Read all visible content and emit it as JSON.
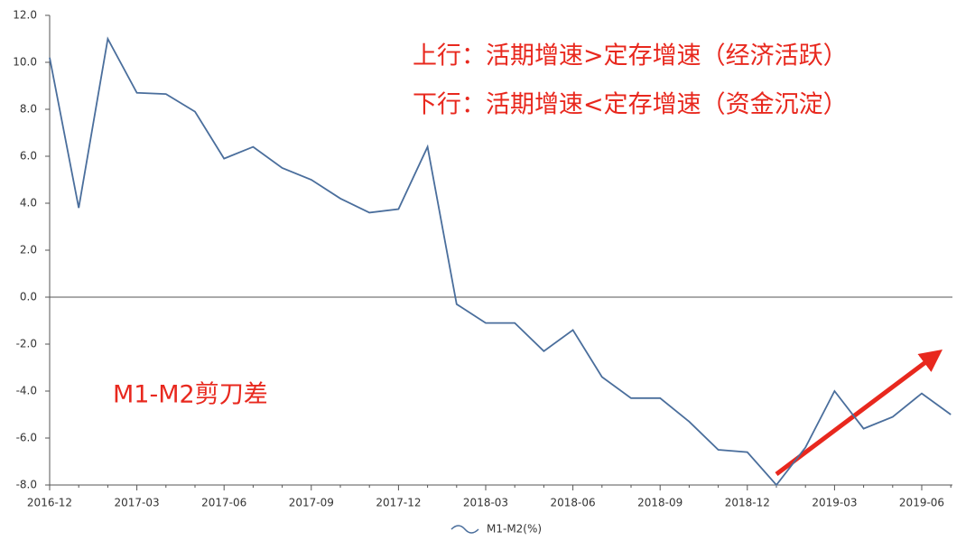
{
  "chart_data": {
    "type": "line",
    "categories": [
      "2016-12",
      null,
      null,
      "2017-03",
      null,
      null,
      "2017-06",
      null,
      null,
      "2017-09",
      null,
      null,
      "2017-12",
      null,
      null,
      "2018-03",
      null,
      null,
      "2018-06",
      null,
      null,
      "2018-09",
      null,
      null,
      "2018-12",
      null,
      null,
      "2019-03",
      null,
      null,
      "2019-06",
      null
    ],
    "series": [
      {
        "name": "M1-M2(%)",
        "color": "#4a6e9c",
        "values": [
          10.2,
          3.8,
          11.0,
          8.7,
          8.65,
          7.9,
          5.9,
          6.4,
          5.5,
          5.0,
          4.2,
          3.6,
          3.75,
          6.4,
          -0.3,
          -1.1,
          -1.1,
          -2.3,
          -1.4,
          -3.4,
          -4.3,
          -4.3,
          -5.3,
          -6.5,
          -6.6,
          -8.0,
          -6.4,
          -4.0,
          -5.6,
          -5.1,
          -4.1,
          -5.0
        ]
      }
    ],
    "ylim": [
      -8,
      12
    ],
    "yticks": [
      {
        "value": 12,
        "label": "12.0"
      },
      {
        "value": 10,
        "label": "10.0"
      },
      {
        "value": 8,
        "label": "8.0"
      },
      {
        "value": 6,
        "label": "6.0"
      },
      {
        "value": 4,
        "label": "4.0"
      },
      {
        "value": 2,
        "label": "2.0"
      },
      {
        "value": 0,
        "label": "0.0"
      },
      {
        "value": -2,
        "label": "-2.0"
      },
      {
        "value": -4,
        "label": "-4.0"
      },
      {
        "value": -6,
        "label": "-6.0"
      },
      {
        "value": -8,
        "label": "-8.0"
      }
    ],
    "annotations": [
      "上行：活期增速>定存增速（经济活跃）",
      "下行：活期增速<定存增速（资金沉淀）",
      "M1-M2剪刀差"
    ]
  }
}
